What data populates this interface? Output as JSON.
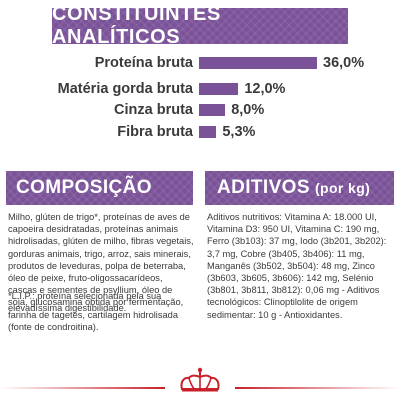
{
  "header": {
    "title": "CONSTITUINTES ANALÍTICOS"
  },
  "nutrients": [
    {
      "label": "Proteína bruta",
      "value": "36,0%",
      "percent": 36.0
    },
    {
      "label": "Matéria gorda bruta",
      "value": "12,0%",
      "percent": 12.0
    },
    {
      "label": "Cinza bruta",
      "value": "8,0%",
      "percent": 8.0
    },
    {
      "label": "Fibra bruta",
      "value": "5,3%",
      "percent": 5.3
    }
  ],
  "composicao": {
    "title": "COMPOSIÇÃO",
    "text": "Milho, glúten de trigo*, proteínas de aves de capoeira desidratadas, proteínas animais hidrolisadas, glúten de milho, fibras vegetais, gorduras animais, trigo, arroz, sais minerais, produtos de leveduras, polpa de beterraba, óleo de peixe, fruto-oligossacarídeos, cascas e sementes de psyllium, óleo de soja, glucosamina obtida por fermentação, farinha de tagetes, cartilagem hidrolisada (fonte de condroitina).",
    "note": "*L.I.P.: proteína selecionada pela sua elevadíssima digestibilidade."
  },
  "aditivos": {
    "title": "ADITIVOS",
    "unit": "(por kg)",
    "text": "Aditivos nutritivos: Vitamina A: 18.000 UI, Vitamina D3: 950 UI, Vitamina C: 190 mg, Ferro (3b103): 37 mg, Iodo (3b201, 3b202): 3,7 mg, Cobre (3b405, 3b406): 11 mg, Manganês (3b502, 3b504): 48 mg, Zinco (3b603, 3b605, 3b606): 142 mg, Selénio (3b801, 3b811, 3b812): 0,06 mg - Aditivos tecnológicos: Clinoptilolite de origem sedimentar: 10 g - Antioxidantes."
  },
  "footer": {
    "logo": "crown-logo",
    "accent_color": "#c8202a"
  },
  "colors": {
    "brand_purple": "#7a5298",
    "text": "#3a3a3a"
  }
}
